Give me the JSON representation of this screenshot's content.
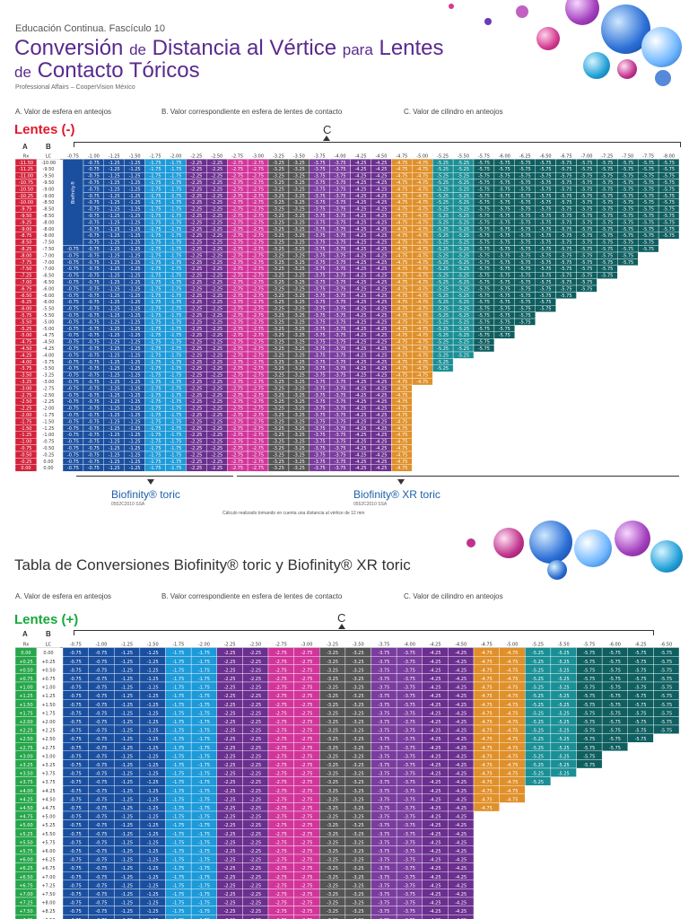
{
  "header": {
    "series": "Educación Continua. Fascículo 10",
    "title_parts": [
      "Conversión",
      "de",
      "Distancia  al Vértice",
      "para",
      "Lentes",
      "de",
      "Contacto Tóricos"
    ],
    "subtitle": "Professional Affairs – CooperVision México"
  },
  "legend": {
    "a": "A. Valor de esfera en anteojos",
    "b": "B. Valor correspondiente en esfera de lentes de contacto",
    "c": "C. Valor de cilindro en anteojos"
  },
  "minus": {
    "title": "Lentes (-)",
    "title_color": "#e0182d",
    "col_a": "A",
    "col_b": "B",
    "col_c": "C",
    "hdr_rx": "Rx",
    "hdr_lc": "LC",
    "side_label": "Biofinity®",
    "cyl": [
      "-0.75",
      "-1.00",
      "-1.25",
      "-1.50",
      "-1.75",
      "-2.00",
      "-2.25",
      "-2.50",
      "-2.75",
      "-3.00",
      "-3.25",
      "-3.50",
      "-3.75",
      "-4.00",
      "-4.25",
      "-4.50",
      "-4.75",
      "-5.00",
      "-5.25",
      "-5.50",
      "-5.75",
      "-6.00",
      "-6.25",
      "-6.50",
      "-6.75",
      "-7.00",
      "-7.25",
      "-7.50",
      "-7.75",
      "-8.00"
    ],
    "rx": [
      "-11.50",
      "-11.25",
      "-11.00",
      "-10.75",
      "-10.50",
      "-10.25",
      "-10.00",
      "-9.75",
      "-9.50",
      "-9.25",
      "-9.00",
      "-8.75",
      "-8.50",
      "-8.25",
      "-8.00",
      "-7.75",
      "-7.50",
      "-7.25",
      "-7.00",
      "-6.75",
      "-6.50",
      "-6.25",
      "-6.00",
      "-5.75",
      "-5.50",
      "-5.25",
      "-5.00",
      "-4.75",
      "-4.50",
      "-4.25",
      "-4.00",
      "-3.75",
      "-3.50",
      "-3.25",
      "-3.00",
      "-2.75",
      "-2.50",
      "-2.25",
      "-2.00",
      "-1.75",
      "-1.50",
      "-1.25",
      "-1.00",
      "-0.75",
      "-0.50",
      "-0.25",
      "0.00"
    ],
    "lc": [
      "-10.00",
      "-9.50",
      "-9.50",
      "-9.50",
      "-9.00",
      "-9.00",
      "-8.50",
      "-8.50",
      "-8.50",
      "-8.00",
      "-8.00",
      "-8.00",
      "-7.50",
      "-7.50",
      "-7.00",
      "-7.00",
      "-7.00",
      "-6.50",
      "-6.50",
      "-6.00",
      "-6.00",
      "-6.00",
      "-5.50",
      "-5.50",
      "-5.00",
      "-5.00",
      "-4.75",
      "-4.50",
      "-4.25",
      "-4.00",
      "-3.75",
      "-3.50",
      "-3.25",
      "-3.00",
      "-2.75",
      "-2.50",
      "-2.25",
      "-2.00",
      "-1.75",
      "-1.50",
      "-1.25",
      "-1.00",
      "-0.75",
      "-0.50",
      "-0.25",
      "0.00",
      "0.00"
    ],
    "brand1": "Biofinity® toric",
    "brand1_code": "0552C2010 SSA",
    "brand2": "Biofinity® XR toric",
    "brand2_code": "0552C2010 SSA",
    "note": "Cálculo realizado tomando en cuenta una distancia al vértice de 12 mm"
  },
  "second_title": "Tabla de Conversiones Biofinity® toric y Biofinity® XR toric",
  "plus": {
    "title": "Lentes (+)",
    "title_color": "#15a83a",
    "col_a": "A",
    "col_b": "B",
    "col_c": "C",
    "hdr_rx": "Rx",
    "hdr_lc": "LC",
    "cyl": [
      "-0.75",
      "-1.00",
      "-1.25",
      "-1.50",
      "-1.75",
      "-2.00",
      "-2.25",
      "-2.50",
      "-2.75",
      "-3.00",
      "-3.25",
      "-3.50",
      "-3.75",
      "-4.00",
      "-4.25",
      "-4.50",
      "-4.75",
      "-5.00",
      "-5.25",
      "-5.50",
      "-5.75",
      "-6.00",
      "-6.25",
      "-6.50"
    ],
    "rx": [
      "0.00",
      "+0.25",
      "+0.50",
      "+0.75",
      "+1.00",
      "+1.25",
      "+1.50",
      "+1.75",
      "+2.00",
      "+2.25",
      "+2.50",
      "+2.75",
      "+3.00",
      "+3.25",
      "+3.50",
      "+3.75",
      "+4.00",
      "+4.25",
      "+4.50",
      "+4.75",
      "+5.00",
      "+5.25",
      "+5.50",
      "+5.75",
      "+6.00",
      "+6.25",
      "+6.50",
      "+6.75",
      "+7.00",
      "+7.25",
      "+7.50",
      "+7.75"
    ],
    "lc": [
      "0.00",
      "+0.25",
      "+0.50",
      "+0.75",
      "+1.00",
      "+1.25",
      "+1.50",
      "+1.75",
      "+2.00",
      "+2.25",
      "+2.50",
      "+2.75",
      "+3.00",
      "+3.25",
      "+3.75",
      "+3.75",
      "+4.25",
      "+4.50",
      "+4.75",
      "+5.00",
      "+5.25",
      "+5.50",
      "+5.75",
      "+6.00",
      "+6.25",
      "+6.75",
      "+7.00",
      "+7.25",
      "+7.50",
      "+8.00",
      "+8.25",
      "+8.50"
    ]
  },
  "colors": {
    "blue": "#1a4fa0",
    "lightblue": "#1d9ad9",
    "purple": "#6b2f8f",
    "magenta": "#d2359a",
    "gray": "#555555",
    "red": "#d02a43",
    "violet": "#7a3c9e",
    "orange": "#e0902a",
    "teal": "#1a8f96",
    "darkteal": "#0f5e60",
    "minusRx": "#d4213b",
    "plusRx": "#26a64a"
  }
}
